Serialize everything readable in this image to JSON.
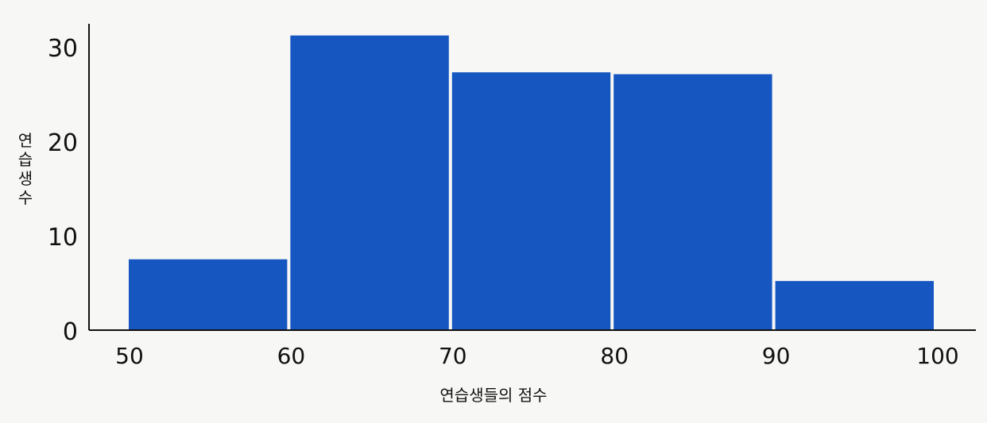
{
  "chart_data": {
    "type": "bar",
    "title": "",
    "xlabel": "연습생들의 점수",
    "ylabel": "연습생 수",
    "bins": [
      {
        "start": 50,
        "end": 60,
        "value": 7.5
      },
      {
        "start": 60,
        "end": 70,
        "value": 31.2
      },
      {
        "start": 70,
        "end": 80,
        "value": 27.3
      },
      {
        "start": 80,
        "end": 90,
        "value": 27.1
      },
      {
        "start": 90,
        "end": 100,
        "value": 5.2
      }
    ],
    "x_ticks": [
      "50",
      "60",
      "70",
      "80",
      "90",
      "100"
    ],
    "y_ticks": [
      "0",
      "10",
      "20",
      "30"
    ],
    "xlim": [
      50,
      100
    ],
    "ylim": [
      0,
      30
    ],
    "grid": false,
    "bar_color": "#1556C0"
  }
}
